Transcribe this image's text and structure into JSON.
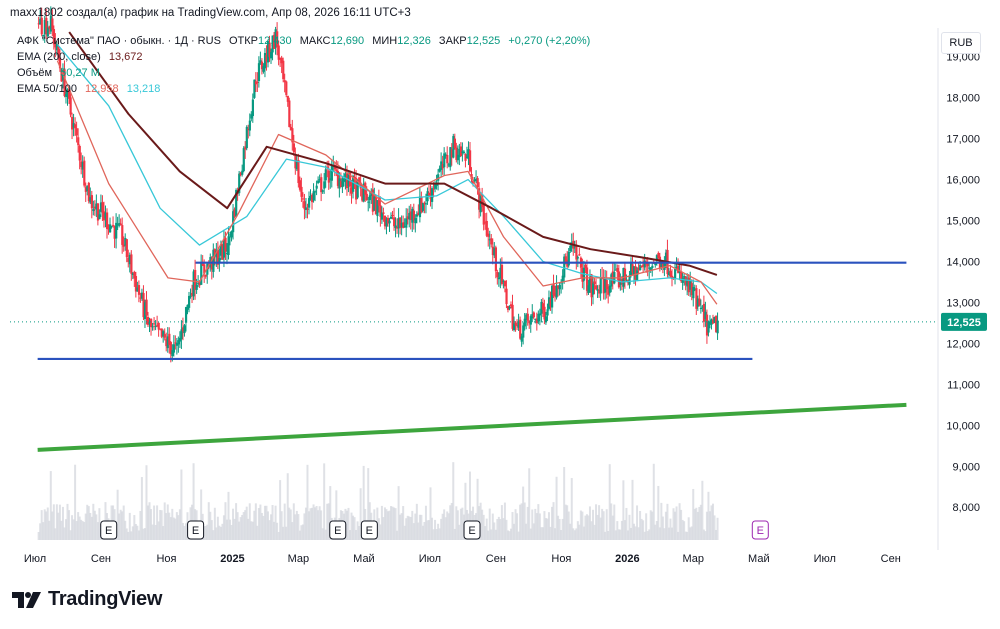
{
  "header": {
    "caption": "maxx1802 создал(а) график на TradingView.com, Апр 08, 2026 16:11 UTC+3"
  },
  "legend": {
    "symbol": "АФК \"Система\" ПАО · обыкн. · 1Д · RUS",
    "open_label": "ОТКР",
    "open_value": "12,430",
    "high_label": "МАКС",
    "high_value": "12,690",
    "low_label": "МИН",
    "low_value": "12,326",
    "close_label": "ЗАКР",
    "close_value": "12,525",
    "change": "+0,270 (+2,20%)",
    "ema200_label": "EMA (200, close)",
    "ema200_value": "13,672",
    "volume_label": "Объём",
    "volume_value": "50,27 M",
    "ema50100_label": "EMA 50/100",
    "ema50_value": "12,958",
    "ema100_value": "13,218"
  },
  "currency": "RUB",
  "brand": {
    "name": "TradingView"
  },
  "colors": {
    "up": "#089981",
    "down": "#f23645",
    "ema200": "#6a1a1a",
    "ema50": "#e0665b",
    "ema100": "#38c8d8",
    "hline": "#2a52be",
    "trend": "#3da53d"
  },
  "chart_data": {
    "type": "candlestick",
    "title": "АФК \"Система\" ПАО · обыкн. · 1Д · RUS",
    "ylim": [
      7.2,
      19.7
    ],
    "y_ticks": [
      "8,000",
      "9,000",
      "10,000",
      "11,000",
      "12,000",
      "13,000",
      "14,000",
      "15,000",
      "16,000",
      "17,000",
      "18,000",
      "19,000"
    ],
    "y_tick_values": [
      8,
      9,
      10,
      11,
      12,
      13,
      14,
      15,
      16,
      17,
      18,
      19
    ],
    "x_ticks": [
      {
        "label": "Июл",
        "bold": false
      },
      {
        "label": "Сен",
        "bold": false
      },
      {
        "label": "Ноя",
        "bold": false
      },
      {
        "label": "2025",
        "bold": true
      },
      {
        "label": "Мар",
        "bold": false
      },
      {
        "label": "Май",
        "bold": false
      },
      {
        "label": "Июл",
        "bold": false
      },
      {
        "label": "Сен",
        "bold": false
      },
      {
        "label": "Ноя",
        "bold": false
      },
      {
        "label": "2026",
        "bold": true
      },
      {
        "label": "Мар",
        "bold": false
      },
      {
        "label": "Май",
        "bold": false
      },
      {
        "label": "Июл",
        "bold": false
      },
      {
        "label": "Сен",
        "bold": false
      }
    ],
    "last_price": 12.525,
    "last_price_label": "12,525",
    "earnings_markers": [
      "E",
      "E",
      "E",
      "E",
      "E",
      "E"
    ],
    "price_path": [
      [
        2024.6,
        19.8
      ],
      [
        2024.7,
        15.5
      ],
      [
        2024.78,
        14.6
      ],
      [
        2024.85,
        12.4
      ],
      [
        2024.92,
        11.8
      ],
      [
        2024.96,
        13.5
      ],
      [
        2025.05,
        14.4
      ],
      [
        2025.12,
        18.5
      ],
      [
        2025.17,
        19.5
      ],
      [
        2025.24,
        15.3
      ],
      [
        2025.31,
        16.2
      ],
      [
        2025.4,
        15.6
      ],
      [
        2025.48,
        14.8
      ],
      [
        2025.55,
        15.5
      ],
      [
        2025.62,
        16.8
      ],
      [
        2025.66,
        16.5
      ],
      [
        2025.72,
        14.2
      ],
      [
        2025.78,
        12.3
      ],
      [
        2025.85,
        12.8
      ],
      [
        2025.92,
        14.3
      ],
      [
        2025.97,
        13.3
      ],
      [
        2026.05,
        13.6
      ],
      [
        2026.15,
        14.1
      ],
      [
        2026.22,
        13.3
      ],
      [
        2026.27,
        12.3
      ],
      [
        2026.29,
        12.525
      ]
    ],
    "ema200": [
      [
        2024.65,
        19.6
      ],
      [
        2024.8,
        17.6
      ],
      [
        2024.93,
        16.2
      ],
      [
        2025.05,
        15.3
      ],
      [
        2025.15,
        16.8
      ],
      [
        2025.3,
        16.4
      ],
      [
        2025.45,
        15.9
      ],
      [
        2025.6,
        15.9
      ],
      [
        2025.72,
        15.3
      ],
      [
        2025.85,
        14.6
      ],
      [
        2025.97,
        14.3
      ],
      [
        2026.1,
        14.1
      ],
      [
        2026.22,
        13.9
      ],
      [
        2026.29,
        13.672
      ]
    ],
    "ema50": [
      [
        2024.62,
        18.9
      ],
      [
        2024.75,
        15.9
      ],
      [
        2024.9,
        13.6
      ],
      [
        2024.98,
        13.5
      ],
      [
        2025.08,
        15.2
      ],
      [
        2025.18,
        17.1
      ],
      [
        2025.3,
        16.6
      ],
      [
        2025.45,
        15.4
      ],
      [
        2025.6,
        16.1
      ],
      [
        2025.66,
        16.2
      ],
      [
        2025.75,
        14.6
      ],
      [
        2025.85,
        13.4
      ],
      [
        2025.95,
        13.6
      ],
      [
        2026.05,
        13.6
      ],
      [
        2026.17,
        13.9
      ],
      [
        2026.25,
        13.5
      ],
      [
        2026.29,
        12.958
      ]
    ],
    "ema100": [
      [
        2024.62,
        19.3
      ],
      [
        2024.75,
        17.8
      ],
      [
        2024.88,
        15.3
      ],
      [
        2024.98,
        14.4
      ],
      [
        2025.1,
        15.1
      ],
      [
        2025.2,
        16.5
      ],
      [
        2025.3,
        16.3
      ],
      [
        2025.45,
        15.5
      ],
      [
        2025.58,
        15.6
      ],
      [
        2025.66,
        16.0
      ],
      [
        2025.75,
        15.1
      ],
      [
        2025.85,
        14.0
      ],
      [
        2025.95,
        13.7
      ],
      [
        2026.05,
        13.5
      ],
      [
        2026.17,
        13.6
      ],
      [
        2026.25,
        13.5
      ],
      [
        2026.29,
        13.218
      ]
    ],
    "horizontal_levels": [
      {
        "value": 13.97,
        "x_start": 2024.97,
        "x_end": 2026.77
      },
      {
        "value": 11.62,
        "x_start": 2024.57,
        "x_end": 2026.38
      }
    ],
    "trendline": {
      "x0": 2024.57,
      "y0": 9.4,
      "x1": 2026.77,
      "y1": 10.5
    }
  }
}
